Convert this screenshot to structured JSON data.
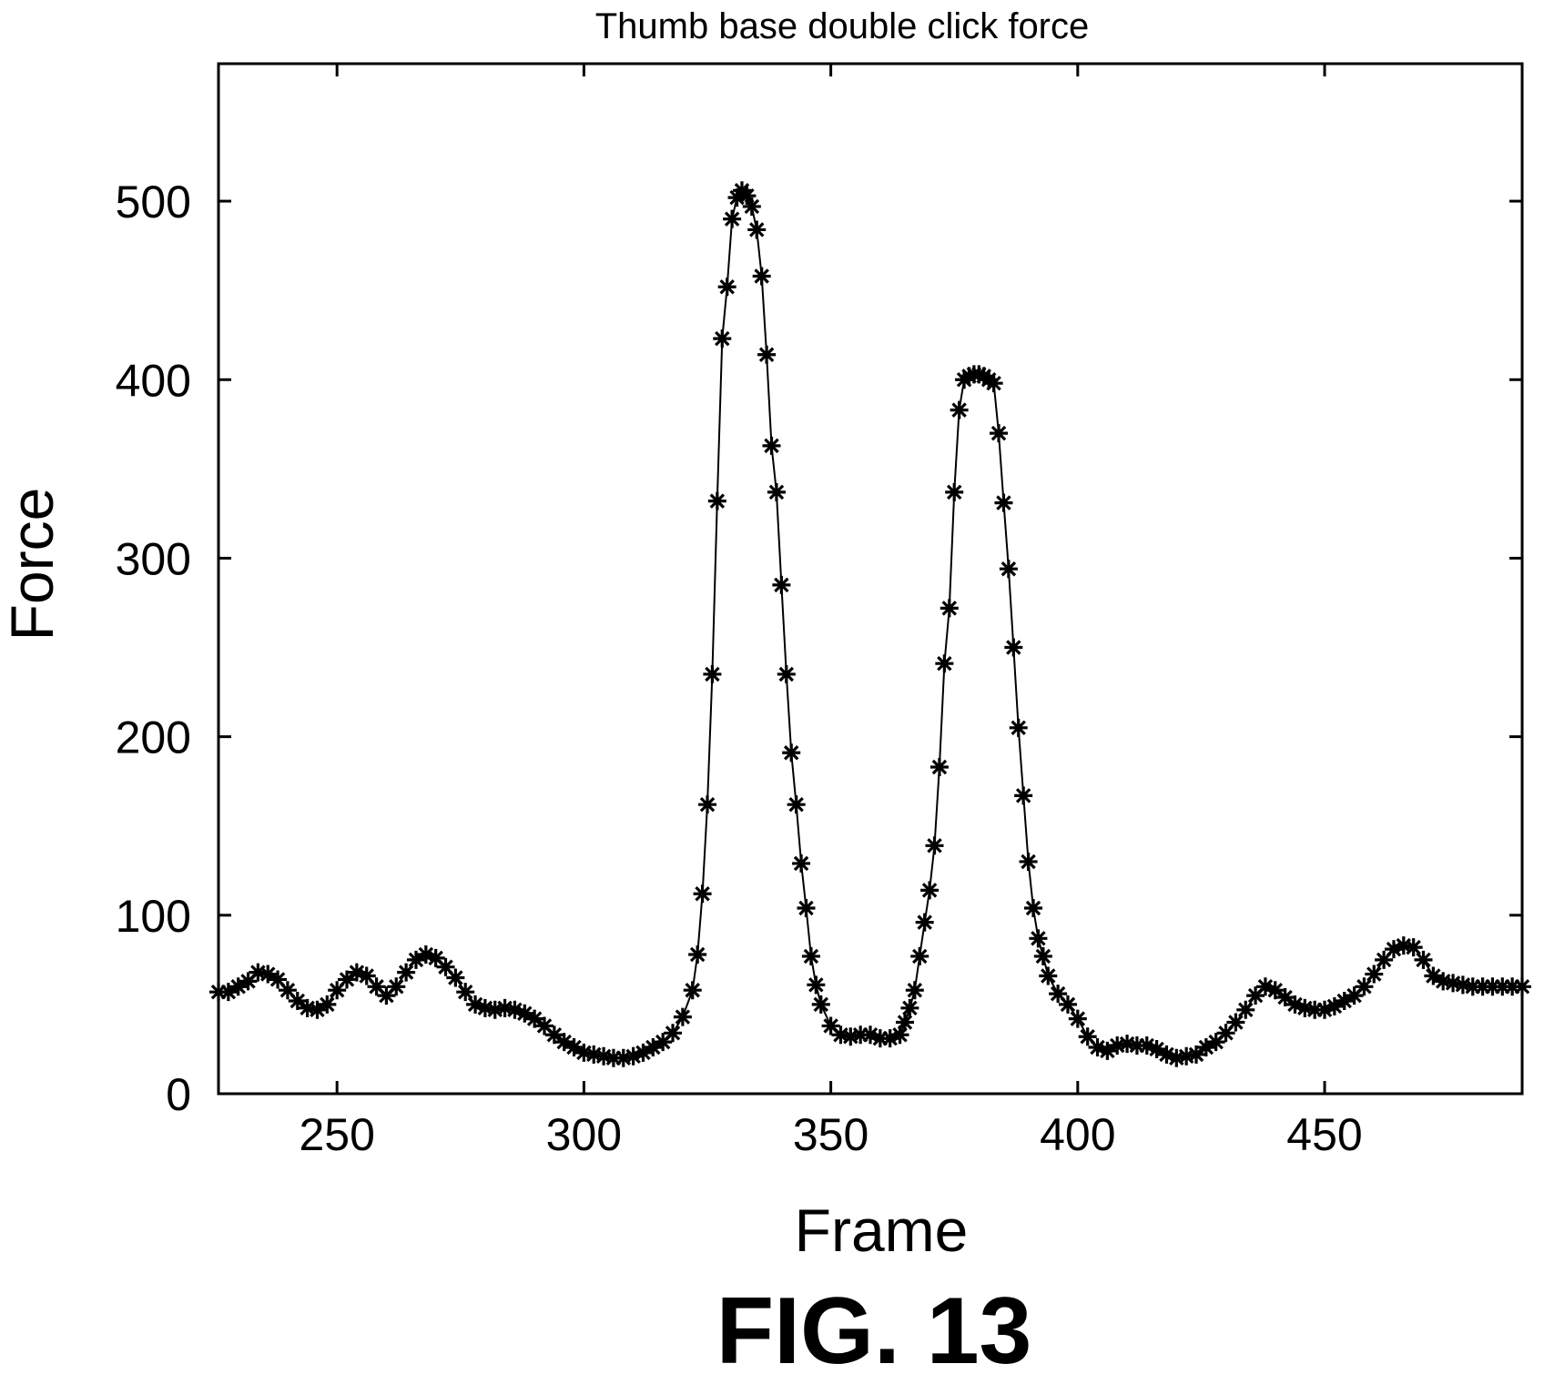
{
  "figure": {
    "caption": "FIG. 13"
  },
  "chart_data": {
    "type": "line",
    "title": "Thumb base double click force",
    "xlabel": "Frame",
    "ylabel": "Force",
    "xlim": [
      226,
      490
    ],
    "ylim": [
      0,
      577
    ],
    "xticks": [
      250,
      300,
      350,
      400,
      450
    ],
    "yticks": [
      0,
      100,
      200,
      300,
      400,
      500
    ],
    "grid": false,
    "legend": "none",
    "line_color": "#000000",
    "marker": "asterisk",
    "series": [
      {
        "x": [
          226,
          228,
          230,
          232,
          234,
          236,
          238,
          240,
          242,
          244,
          246,
          248,
          250,
          252,
          254,
          256,
          258,
          260,
          262,
          264,
          266,
          268,
          270,
          272,
          274,
          276,
          278,
          280,
          282,
          284,
          286,
          288,
          290,
          292,
          294,
          296,
          298,
          300,
          302,
          304,
          306,
          308,
          310,
          312,
          314,
          316,
          318,
          320,
          322,
          323,
          324,
          325,
          326,
          327,
          328,
          329,
          330,
          331,
          332,
          333,
          334,
          335,
          336,
          337,
          338,
          339,
          340,
          341,
          342,
          343,
          344,
          345,
          346,
          347,
          348,
          350,
          352,
          354,
          356,
          358,
          360,
          362,
          364,
          365,
          366,
          367,
          368,
          369,
          370,
          371,
          372,
          373,
          374,
          375,
          376,
          377,
          378,
          379,
          380,
          381,
          382,
          383,
          384,
          385,
          386,
          387,
          388,
          389,
          390,
          391,
          392,
          393,
          394,
          396,
          398,
          400,
          402,
          404,
          406,
          408,
          410,
          412,
          414,
          416,
          418,
          420,
          422,
          424,
          426,
          428,
          430,
          432,
          434,
          436,
          438,
          440,
          442,
          444,
          446,
          448,
          450,
          452,
          454,
          456,
          458,
          460,
          462,
          464,
          466,
          468,
          470,
          472,
          474,
          476,
          478,
          480,
          482,
          484,
          486,
          488,
          490
        ],
        "y": [
          57,
          57,
          60,
          63,
          68,
          67,
          64,
          58,
          52,
          48,
          47,
          50,
          58,
          64,
          68,
          66,
          60,
          55,
          60,
          68,
          75,
          78,
          76,
          71,
          65,
          57,
          50,
          48,
          47,
          48,
          47,
          45,
          42,
          38,
          33,
          29,
          26,
          23,
          22,
          21,
          20,
          20,
          21,
          23,
          26,
          29,
          34,
          43,
          58,
          78,
          112,
          162,
          235,
          332,
          423,
          452,
          490,
          502,
          506,
          503,
          497,
          484,
          458,
          414,
          363,
          337,
          285,
          235,
          191,
          162,
          129,
          104,
          77,
          61,
          50,
          38,
          33,
          32,
          33,
          33,
          31,
          31,
          33,
          40,
          48,
          58,
          77,
          96,
          114,
          139,
          183,
          241,
          272,
          337,
          383,
          400,
          402,
          403,
          403,
          402,
          400,
          398,
          370,
          331,
          294,
          250,
          205,
          167,
          130,
          104,
          87,
          77,
          66,
          56,
          50,
          42,
          32,
          26,
          24,
          27,
          28,
          27,
          27,
          25,
          22,
          20,
          21,
          22,
          26,
          29,
          34,
          40,
          47,
          55,
          60,
          58,
          54,
          50,
          48,
          47,
          47,
          49,
          52,
          55,
          60,
          67,
          75,
          81,
          83,
          82,
          75,
          66,
          63,
          62,
          61,
          60,
          60,
          60,
          60,
          60,
          60
        ]
      }
    ]
  }
}
